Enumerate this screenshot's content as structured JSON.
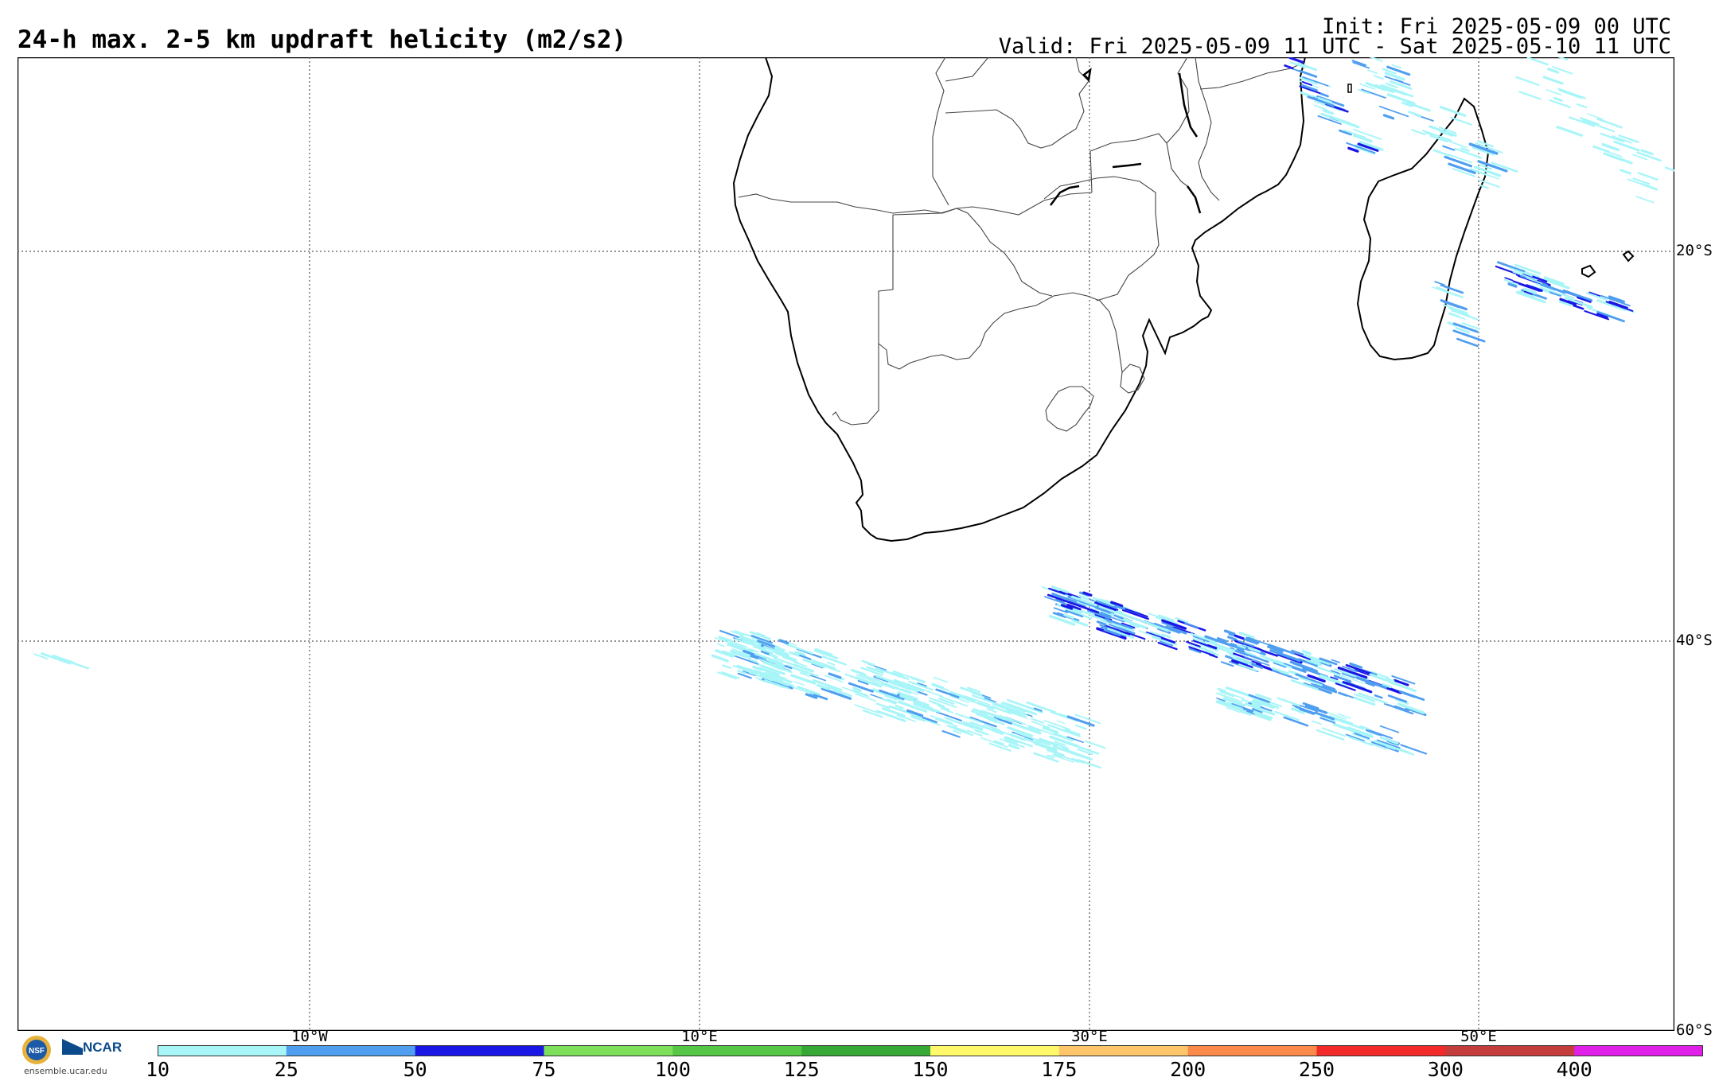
{
  "header": {
    "title": "24-h max. 2-5 km updraft helicity (m2/s2)",
    "init": "Init: Fri 2025-05-09 00 UTC",
    "valid": "Valid: Fri 2025-05-09 11 UTC - Sat 2025-05-10 11 UTC"
  },
  "map": {
    "lat_labels": [
      "20°S",
      "40°S",
      "60°S"
    ],
    "lon_labels": [
      "10°W",
      "10°E",
      "30°E",
      "50°E"
    ],
    "coastline_color": "#000000",
    "border_color": "#555555",
    "gridline_style": "dotted"
  },
  "colorbar": {
    "ticks": [
      "10",
      "25",
      "50",
      "75",
      "100",
      "125",
      "150",
      "175",
      "200",
      "250",
      "300",
      "400"
    ],
    "colors": [
      "#a8f5f8",
      "#4f9ef0",
      "#1a17e6",
      "#7ee05a",
      "#55c645",
      "#35a835",
      "#fef86a",
      "#fdc66b",
      "#fc8a4b",
      "#f22a2a",
      "#c43c3c",
      "#e020e8"
    ]
  },
  "logos": {
    "nsf": "NSF",
    "ncar": "NCAR",
    "url": "ensemble.ucar.edu"
  }
}
